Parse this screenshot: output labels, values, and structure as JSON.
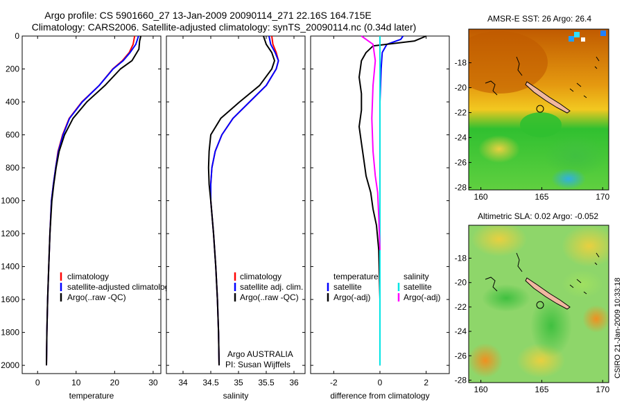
{
  "header": {
    "line1": "Argo profile: CS 5901660_27 13-Jan-2009 20090114_271 22.16S 164.715E",
    "line2": "Climatology: CARS2006. Satellite-adjusted climatology: synTS_20090114.nc (0.34d later)"
  },
  "side_label": "CSIRO 21-Jan-2009 10:33:18",
  "credit": {
    "line1": "Argo AUSTRALIA",
    "line2": "PI: Susan Wijffels"
  },
  "colors": {
    "climatology": "#ff0000",
    "satellite": "#0000ff",
    "argo": "#000000",
    "sal_satellite": "#00e5e5",
    "sal_argo": "#ff00ff"
  },
  "chart_data": [
    {
      "type": "line",
      "xlabel": "temperature",
      "xlim": [
        -4,
        32
      ],
      "ylim": [
        2050,
        0
      ],
      "xticks": [
        0,
        10,
        20,
        30
      ],
      "yticks": [
        0,
        200,
        400,
        600,
        800,
        1000,
        1200,
        1400,
        1600,
        1800,
        2000
      ],
      "legend": {
        "placement": "bottom-left",
        "entries": [
          "climatology",
          "satellite-adjusted climatology",
          "Argo(..raw -QC)"
        ]
      },
      "series": [
        {
          "name": "climatology",
          "x": [
            25.2,
            24.8,
            23.8,
            22.0,
            19.5,
            16.0,
            11.5,
            8.2,
            6.5,
            5.3,
            4.7,
            4.1,
            3.6,
            3.2,
            2.9,
            2.6,
            2.4,
            2.3
          ],
          "y": [
            0,
            50,
            100,
            150,
            200,
            300,
            400,
            500,
            600,
            700,
            800,
            900,
            1000,
            1200,
            1400,
            1600,
            1800,
            2000
          ]
        },
        {
          "name": "satellite-adjusted climatology",
          "x": [
            26.2,
            25.5,
            24.0,
            22.2,
            19.6,
            16.0,
            11.6,
            8.3,
            6.6,
            5.4,
            4.7,
            4.1,
            3.6,
            3.2,
            2.9,
            2.6,
            2.4,
            2.3
          ],
          "y": [
            0,
            50,
            100,
            150,
            200,
            300,
            400,
            500,
            600,
            700,
            800,
            900,
            1000,
            1200,
            1400,
            1600,
            1800,
            2000
          ]
        },
        {
          "name": "Argo(..raw -QC)",
          "x": [
            26.8,
            26.5,
            26.3,
            24.5,
            21.5,
            17.5,
            12.8,
            9.2,
            7.0,
            5.6,
            4.8,
            4.2,
            3.7,
            3.2,
            2.9,
            2.6,
            2.4,
            2.3
          ],
          "y": [
            0,
            30,
            80,
            150,
            200,
            300,
            400,
            500,
            600,
            700,
            800,
            900,
            1000,
            1200,
            1400,
            1600,
            1800,
            2000
          ]
        }
      ]
    },
    {
      "type": "line",
      "xlabel": "salinity",
      "xlim": [
        33.7,
        36.2
      ],
      "ylim": [
        2050,
        0
      ],
      "xticks": [
        34,
        34.5,
        35,
        35.5,
        36
      ],
      "legend": {
        "placement": "bottom-left",
        "entries": [
          "climatology",
          "satellite adj. clim.",
          "Argo(..raw -QC)"
        ]
      },
      "series": [
        {
          "name": "climatology",
          "x": [
            35.6,
            35.62,
            35.68,
            35.72,
            35.68,
            35.5,
            35.2,
            34.9,
            34.7,
            34.58,
            34.52,
            34.5,
            34.5,
            34.55,
            34.59,
            34.62,
            34.64,
            34.65
          ],
          "y": [
            0,
            50,
            100,
            150,
            200,
            300,
            400,
            500,
            600,
            700,
            800,
            900,
            1000,
            1200,
            1400,
            1600,
            1800,
            2000
          ]
        },
        {
          "name": "satellite adj. clim.",
          "x": [
            35.55,
            35.58,
            35.66,
            35.72,
            35.68,
            35.5,
            35.2,
            34.9,
            34.7,
            34.58,
            34.52,
            34.5,
            34.5,
            34.55,
            34.59,
            34.62,
            34.64,
            34.65
          ],
          "y": [
            0,
            50,
            100,
            150,
            200,
            300,
            400,
            500,
            600,
            700,
            800,
            900,
            1000,
            1200,
            1400,
            1600,
            1800,
            2000
          ]
        },
        {
          "name": "Argo(..raw -QC)",
          "x": [
            35.45,
            35.5,
            35.6,
            35.65,
            35.6,
            35.38,
            35.02,
            34.68,
            34.5,
            34.47,
            34.46,
            34.47,
            34.5,
            34.55,
            34.59,
            34.62,
            34.64,
            34.65
          ],
          "y": [
            0,
            50,
            100,
            150,
            200,
            300,
            400,
            500,
            600,
            700,
            800,
            900,
            1000,
            1200,
            1400,
            1600,
            1800,
            2000
          ]
        }
      ]
    },
    {
      "type": "line",
      "xlabel": "difference from climatology",
      "xlim": [
        -3,
        3
      ],
      "ylim": [
        2050,
        0
      ],
      "xticks": [
        -2,
        0,
        2
      ],
      "legend": {
        "placement": "bottom",
        "entries": [
          "temperature",
          "satellite",
          "Argo(-adj)",
          "salinity",
          "satellite",
          "Argo(-adj)"
        ]
      },
      "series": [
        {
          "name": "satellite",
          "x": [
            1.0,
            0.9,
            0.3,
            0.1,
            0.05,
            0,
            0,
            0,
            0,
            0,
            0
          ],
          "y": [
            0,
            20,
            50,
            100,
            200,
            400,
            600,
            800,
            1000,
            1500,
            2000
          ]
        },
        {
          "name": "Argo(-adj)",
          "x": [
            2.0,
            1.5,
            -0.3,
            -0.6,
            -0.8,
            -0.9,
            -0.8,
            -0.8,
            -0.9,
            -0.8,
            -0.7,
            -0.6,
            -0.4,
            -0.3,
            -0.15,
            -0.05,
            0,
            0
          ],
          "y": [
            0,
            30,
            60,
            100,
            150,
            250,
            350,
            450,
            550,
            650,
            750,
            850,
            950,
            1050,
            1150,
            1300,
            1600,
            2000
          ]
        },
        {
          "name": "satellite",
          "x": [
            0,
            0,
            0,
            0,
            0,
            0
          ],
          "y": [
            0,
            200,
            500,
            1000,
            1500,
            2000
          ]
        },
        {
          "name": "Argo(-adj)",
          "x": [
            -0.8,
            -0.3,
            -0.2,
            -0.3,
            -0.35,
            -0.3,
            -0.2,
            -0.1,
            -0.05,
            0
          ],
          "y": [
            0,
            50,
            150,
            300,
            500,
            700,
            850,
            950,
            1100,
            1300
          ]
        }
      ]
    },
    {
      "type": "heatmap",
      "title": "AMSR-E SST: 26  Argo: 26.4",
      "xticks": [
        160,
        165,
        170
      ],
      "yticks": [
        -18,
        -20,
        -22,
        -24,
        -26,
        -28
      ],
      "xlim": [
        159,
        170.5
      ],
      "ylim": [
        -28.2,
        -15.3
      ]
    },
    {
      "type": "heatmap",
      "title": "Altimetric SLA: 0.02  Argo: -0.052",
      "xticks": [
        160,
        165,
        170
      ],
      "yticks": [
        -18,
        -20,
        -22,
        -24,
        -26,
        -28
      ],
      "xlim": [
        159,
        170.5
      ],
      "ylim": [
        -28.2,
        -15.3
      ]
    }
  ]
}
